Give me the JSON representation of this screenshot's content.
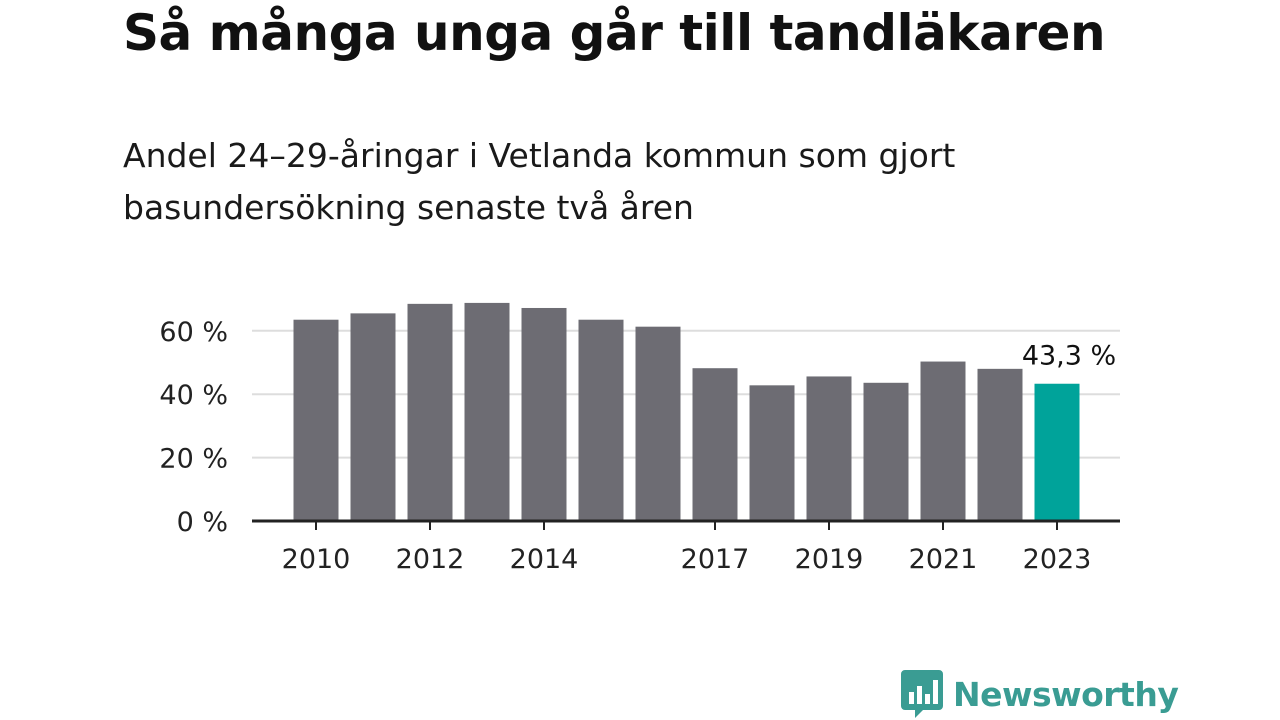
{
  "title": "Så många unga går till tandläkaren",
  "subtitle": "Andel 24–29-åringar i Vetlanda kommun som gjort basundersökning senaste två åren",
  "brand": "Newsworthy",
  "colors": {
    "bar": "#6d6c73",
    "highlight": "#00a39a",
    "grid": "#dddddd",
    "axis": "#222222",
    "brand": "#3a9c93"
  },
  "chart_data": {
    "type": "bar",
    "categories": [
      "2010",
      "2011",
      "2012",
      "2013",
      "2014",
      "2015",
      "2016",
      "2017",
      "2018",
      "2019",
      "2020",
      "2021",
      "2022",
      "2023"
    ],
    "values": [
      63.5,
      65.5,
      68.5,
      68.8,
      67.2,
      63.5,
      61.3,
      48.2,
      42.8,
      45.6,
      43.6,
      50.3,
      48.0,
      43.3
    ],
    "x_tick_labels": [
      "2010",
      "2012",
      "2014",
      "2017",
      "2019",
      "2021",
      "2023"
    ],
    "y_ticks": [
      0,
      20,
      40,
      60
    ],
    "y_tick_labels": [
      "0 %",
      "20 %",
      "40 %",
      "60 %"
    ],
    "ylim": [
      0,
      70
    ],
    "highlight_category": "2023",
    "data_label": "43,3 %",
    "grid": true
  }
}
